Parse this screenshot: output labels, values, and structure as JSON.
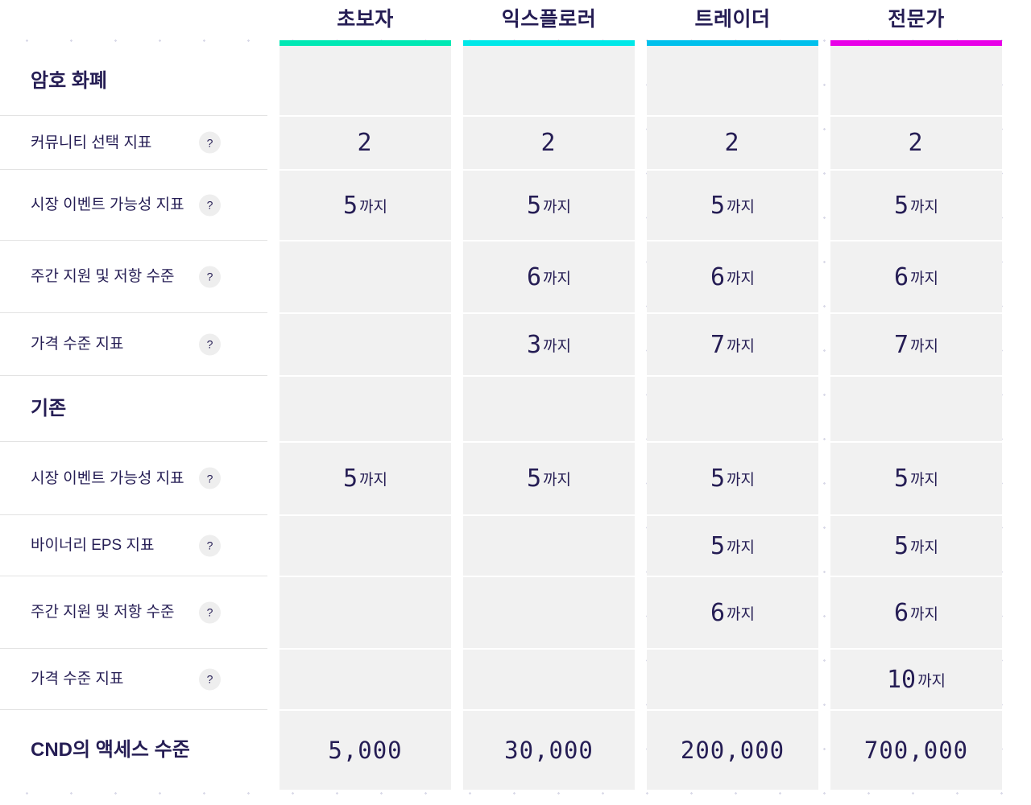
{
  "columns": [
    {
      "label": "초보자",
      "color": "#00e8b4"
    },
    {
      "label": "익스플로러",
      "color": "#00e8e8"
    },
    {
      "label": "트레이더",
      "color": "#00c0ec"
    },
    {
      "label": "전문가",
      "color": "#e800e8"
    }
  ],
  "rows": [
    {
      "type": "section",
      "label": "암호 화폐"
    },
    {
      "type": "feature",
      "label": "커뮤니티 선택 지표",
      "help": "?",
      "cells": [
        {
          "num": "2",
          "suffix": ""
        },
        {
          "num": "2",
          "suffix": ""
        },
        {
          "num": "2",
          "suffix": ""
        },
        {
          "num": "2",
          "suffix": ""
        }
      ]
    },
    {
      "type": "feature",
      "label": "시장 이벤트 가능성 지표",
      "help": "?",
      "cells": [
        {
          "num": "5",
          "suffix": "까지"
        },
        {
          "num": "5",
          "suffix": "까지"
        },
        {
          "num": "5",
          "suffix": "까지"
        },
        {
          "num": "5",
          "suffix": "까지"
        }
      ]
    },
    {
      "type": "feature",
      "label": "주간 지원 및 저항 수준",
      "help": "?",
      "cells": [
        {
          "num": "",
          "suffix": ""
        },
        {
          "num": "6",
          "suffix": "까지"
        },
        {
          "num": "6",
          "suffix": "까지"
        },
        {
          "num": "6",
          "suffix": "까지"
        }
      ]
    },
    {
      "type": "feature",
      "label": "가격 수준 지표",
      "help": "?",
      "cells": [
        {
          "num": "",
          "suffix": ""
        },
        {
          "num": "3",
          "suffix": "까지"
        },
        {
          "num": "7",
          "suffix": "까지"
        },
        {
          "num": "7",
          "suffix": "까지"
        }
      ]
    },
    {
      "type": "section",
      "label": "기존"
    },
    {
      "type": "feature",
      "label": "시장 이벤트 가능성 지표",
      "help": "?",
      "cells": [
        {
          "num": "5",
          "suffix": "까지"
        },
        {
          "num": "5",
          "suffix": "까지"
        },
        {
          "num": "5",
          "suffix": "까지"
        },
        {
          "num": "5",
          "suffix": "까지"
        }
      ]
    },
    {
      "type": "feature",
      "label": "바이너리 EPS 지표",
      "help": "?",
      "cells": [
        {
          "num": "",
          "suffix": ""
        },
        {
          "num": "",
          "suffix": ""
        },
        {
          "num": "5",
          "suffix": "까지"
        },
        {
          "num": "5",
          "suffix": "까지"
        }
      ]
    },
    {
      "type": "feature",
      "label": "주간 지원 및 저항 수준",
      "help": "?",
      "cells": [
        {
          "num": "",
          "suffix": ""
        },
        {
          "num": "",
          "suffix": ""
        },
        {
          "num": "6",
          "suffix": "까지"
        },
        {
          "num": "6",
          "suffix": "까지"
        }
      ]
    },
    {
      "type": "feature",
      "label": "가격 수준 지표",
      "help": "?",
      "cells": [
        {
          "num": "",
          "suffix": ""
        },
        {
          "num": "",
          "suffix": ""
        },
        {
          "num": "",
          "suffix": ""
        },
        {
          "num": "10",
          "suffix": "까지"
        }
      ]
    },
    {
      "type": "access",
      "label": "CND의 액세스 수준",
      "cells": [
        {
          "num": "5,000",
          "suffix": ""
        },
        {
          "num": "30,000",
          "suffix": ""
        },
        {
          "num": "200,000",
          "suffix": ""
        },
        {
          "num": "700,000",
          "suffix": ""
        }
      ]
    }
  ]
}
